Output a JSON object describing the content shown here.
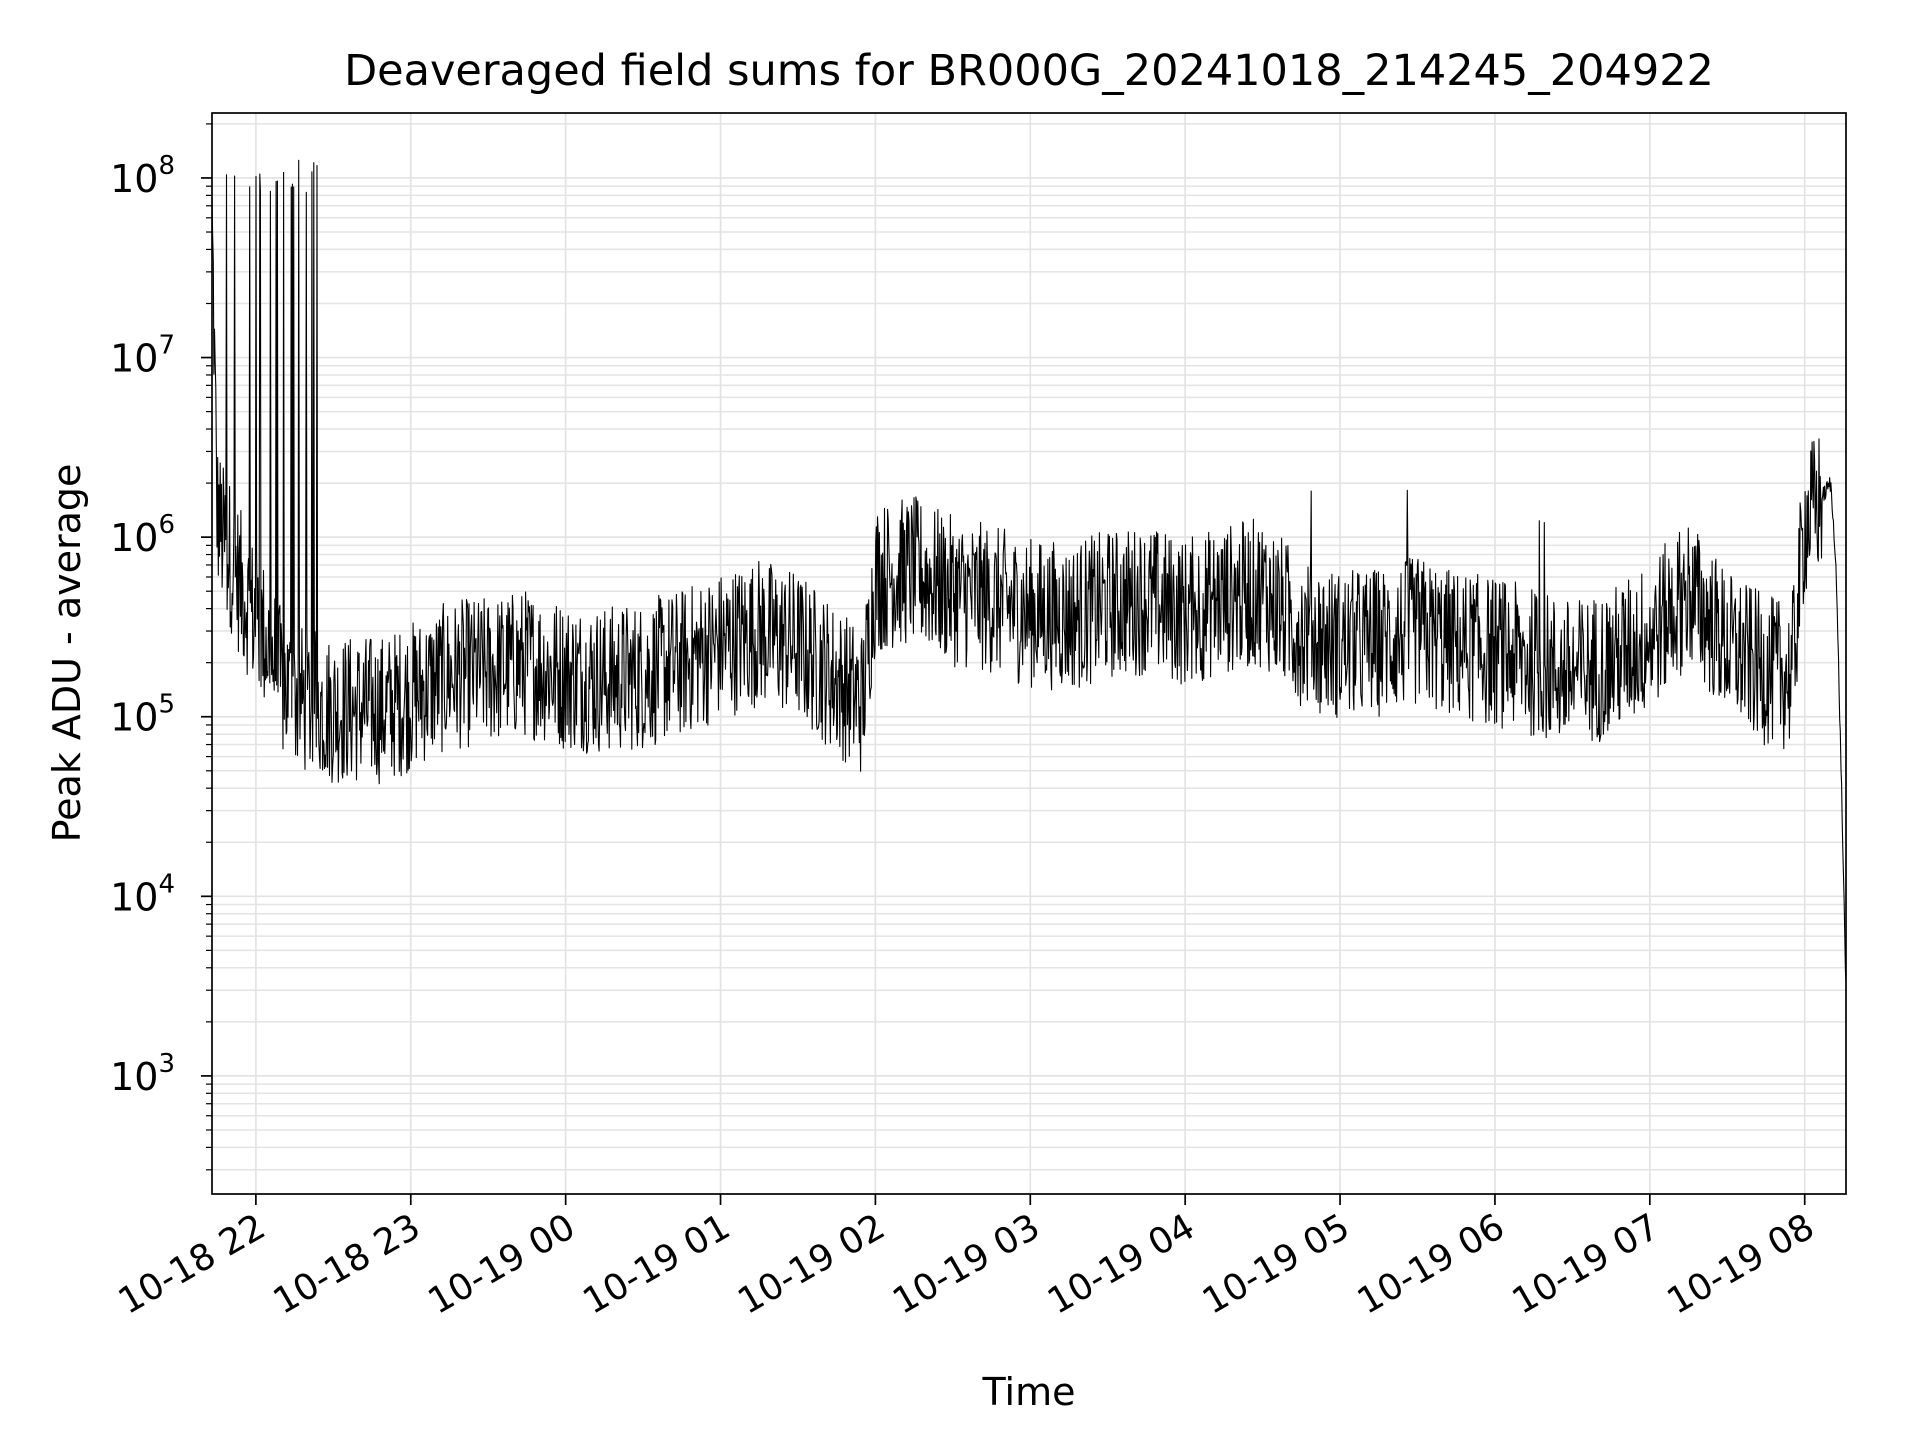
{
  "chart_data": {
    "type": "line",
    "title": "Deaveraged field sums for BR000G_20241018_214245_204922",
    "xlabel": "Time",
    "ylabel": "Peak ADU - average",
    "yscale": "log",
    "ylim": [
      220,
      230000000
    ],
    "xlim": [
      "2024-10-18 21:43",
      "2024-10-19 08:16"
    ],
    "grid": true,
    "line_color": "#000000",
    "grid_color": "#e3e3e3",
    "x_ticks": [
      {
        "label": "10-18 22",
        "time": "2024-10-18 22:00"
      },
      {
        "label": "10-18 23",
        "time": "2024-10-18 23:00"
      },
      {
        "label": "10-19 00",
        "time": "2024-10-19 00:00"
      },
      {
        "label": "10-19 01",
        "time": "2024-10-19 01:00"
      },
      {
        "label": "10-19 02",
        "time": "2024-10-19 02:00"
      },
      {
        "label": "10-19 03",
        "time": "2024-10-19 03:00"
      },
      {
        "label": "10-19 04",
        "time": "2024-10-19 04:00"
      },
      {
        "label": "10-19 05",
        "time": "2024-10-19 05:00"
      },
      {
        "label": "10-19 06",
        "time": "2024-10-19 06:00"
      },
      {
        "label": "10-19 07",
        "time": "2024-10-19 07:00"
      },
      {
        "label": "10-19 08",
        "time": "2024-10-19 08:00"
      }
    ],
    "y_ticks": [
      {
        "base": "10",
        "exp": "3",
        "value": 1000
      },
      {
        "base": "10",
        "exp": "4",
        "value": 10000
      },
      {
        "base": "10",
        "exp": "5",
        "value": 100000
      },
      {
        "base": "10",
        "exp": "6",
        "value": 1000000
      },
      {
        "base": "10",
        "exp": "7",
        "value": 10000000
      },
      {
        "base": "10",
        "exp": "8",
        "value": 100000000
      }
    ],
    "series": [
      {
        "x": [
          "2024-10-18 21:43",
          "2024-10-18 21:45",
          "2024-10-18 21:47",
          "2024-10-18 21:50",
          "2024-10-18 21:55",
          "2024-10-18 22:00",
          "2024-10-18 22:05",
          "2024-10-18 22:10",
          "2024-10-18 22:15",
          "2024-10-18 22:20",
          "2024-10-18 22:30",
          "2024-10-18 22:40",
          "2024-10-18 22:50",
          "2024-10-18 23:00",
          "2024-10-18 23:15",
          "2024-10-18 23:30",
          "2024-10-18 23:45",
          "2024-10-19 00:00",
          "2024-10-19 00:15",
          "2024-10-19 00:30",
          "2024-10-19 00:45",
          "2024-10-19 01:00",
          "2024-10-19 01:15",
          "2024-10-19 01:30",
          "2024-10-19 01:45",
          "2024-10-19 01:55",
          "2024-10-19 02:00",
          "2024-10-19 02:15",
          "2024-10-19 02:30",
          "2024-10-19 02:45",
          "2024-10-19 03:00",
          "2024-10-19 03:15",
          "2024-10-19 03:30",
          "2024-10-19 03:45",
          "2024-10-19 04:00",
          "2024-10-19 04:15",
          "2024-10-19 04:30",
          "2024-10-19 04:45",
          "2024-10-19 05:00",
          "2024-10-19 05:15",
          "2024-10-19 05:30",
          "2024-10-19 05:45",
          "2024-10-19 06:00",
          "2024-10-19 06:15",
          "2024-10-19 06:30",
          "2024-10-19 06:45",
          "2024-10-19 07:00",
          "2024-10-19 07:15",
          "2024-10-19 07:30",
          "2024-10-19 07:45",
          "2024-10-19 07:55",
          "2024-10-19 08:00",
          "2024-10-19 08:05",
          "2024-10-19 08:10",
          "2024-10-19 08:12",
          "2024-10-19 08:14",
          "2024-10-19 08:16"
        ],
        "y": [
          60000000,
          1400000,
          1000000,
          800000,
          500000,
          350000,
          250000,
          150000,
          130000,
          120000,
          110000,
          110000,
          110000,
          130000,
          170000,
          180000,
          200000,
          170000,
          160000,
          170000,
          200000,
          250000,
          300000,
          250000,
          160000,
          120000,
          600000,
          650000,
          500000,
          450000,
          380000,
          360000,
          420000,
          450000,
          380000,
          450000,
          500000,
          300000,
          250000,
          260000,
          300000,
          250000,
          230000,
          200000,
          170000,
          200000,
          280000,
          500000,
          250000,
          180000,
          170000,
          1200000,
          1500000,
          2000000,
          800000,
          60000,
          3000
        ]
      }
    ]
  }
}
